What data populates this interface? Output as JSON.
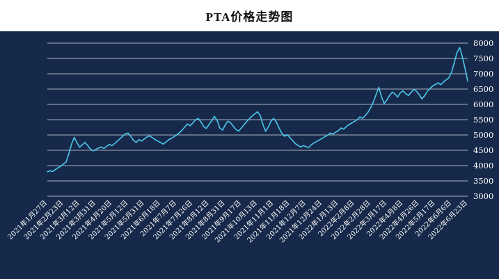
{
  "page": {
    "title": "PTA价格走势图"
  },
  "chart_data": {
    "type": "line",
    "title": "PTA价格走势图",
    "series_name": "PTA价格",
    "legend": "none",
    "grid": "on",
    "y_axis_position": "right",
    "background_color": "#17294a",
    "line_color": "#4ac8ea",
    "grid_color": "#c3cad6",
    "text_color": "#ffffff",
    "ylim": [
      3000,
      8000
    ],
    "yticks": [
      3000,
      3500,
      4000,
      4500,
      5000,
      5500,
      6000,
      6500,
      7000,
      7500,
      8000
    ],
    "categories": [
      "2021年1月27日",
      "2021年2月23日",
      "2021年3月12日",
      "2021年3月31日",
      "2021年4月20日",
      "2021年5月12日",
      "2021年5月31日",
      "2021年6月18日",
      "2021年7月7日",
      "2021年7月26日",
      "2021年8月12日",
      "2021年8月31日",
      "2021年9月17日",
      "2021年10月13日",
      "2021年11月1日",
      "2021年11月18日",
      "2021年12月7日",
      "2021年12月24日",
      "2022年1月13日",
      "2022年2月8日",
      "2022年2月28日",
      "2022年3月17日",
      "2022年4月8日",
      "2022年4月26日",
      "2022年5月17日",
      "2022年6月6日",
      "2022年6月23日"
    ],
    "points_per_interval": 6,
    "values": [
      3800,
      3830,
      3810,
      3870,
      3930,
      3980,
      4050,
      4120,
      4400,
      4700,
      4920,
      4750,
      4600,
      4680,
      4760,
      4650,
      4540,
      4480,
      4530,
      4570,
      4610,
      4560,
      4630,
      4690,
      4650,
      4720,
      4800,
      4880,
      4960,
      5040,
      5060,
      4950,
      4820,
      4760,
      4850,
      4800,
      4870,
      4940,
      4970,
      4910,
      4850,
      4800,
      4760,
      4700,
      4770,
      4840,
      4890,
      4940,
      5000,
      5070,
      5160,
      5260,
      5360,
      5300,
      5390,
      5490,
      5540,
      5430,
      5280,
      5210,
      5340,
      5470,
      5610,
      5480,
      5230,
      5160,
      5320,
      5450,
      5400,
      5290,
      5180,
      5130,
      5230,
      5330,
      5440,
      5530,
      5620,
      5690,
      5760,
      5640,
      5350,
      5120,
      5260,
      5450,
      5540,
      5420,
      5230,
      5060,
      4960,
      5010,
      4920,
      4820,
      4720,
      4660,
      4610,
      4650,
      4620,
      4590,
      4680,
      4740,
      4790,
      4840,
      4890,
      4940,
      4990,
      5060,
      5030,
      5090,
      5140,
      5230,
      5190,
      5280,
      5340,
      5390,
      5440,
      5500,
      5590,
      5540,
      5640,
      5740,
      5890,
      6080,
      6320,
      6560,
      6250,
      6030,
      6140,
      6290,
      6400,
      6340,
      6240,
      6380,
      6440,
      6350,
      6290,
      6390,
      6490,
      6430,
      6320,
      6180,
      6280,
      6420,
      6520,
      6600,
      6650,
      6700,
      6640,
      6730,
      6800,
      6870,
      7050,
      7350,
      7680,
      7860,
      7560,
      7180,
      6760
    ]
  }
}
